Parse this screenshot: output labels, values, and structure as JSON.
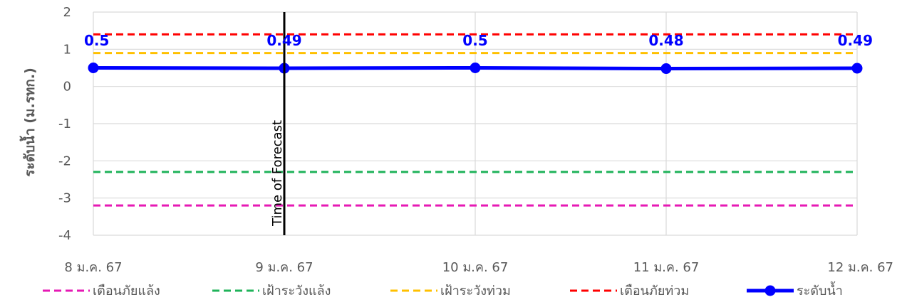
{
  "chart_data": {
    "type": "line",
    "ylabel": "ระดับน้ำ (ม.รทก.)",
    "ylim": [
      -4,
      2
    ],
    "yticks": [
      -4,
      -3,
      -2,
      -1,
      0,
      1,
      2
    ],
    "categories": [
      "8 ม.ค. 67",
      "9 ม.ค. 67",
      "10 ม.ค. 67",
      "11 ม.ค. 67",
      "12 ม.ค. 67"
    ],
    "grid": true,
    "legend_position": "bottom",
    "series": [
      {
        "name": "เตือนภัยแล้ง",
        "values": [
          -3.2,
          -3.2,
          -3.2,
          -3.2,
          -3.2
        ],
        "color": "#e619b4",
        "style": "dashed"
      },
      {
        "name": "เฝ้าระวังแล้ง",
        "values": [
          -2.3,
          -2.3,
          -2.3,
          -2.3,
          -2.3
        ],
        "color": "#1fb35a",
        "style": "dashed"
      },
      {
        "name": "เฝ้าระวังท่วม",
        "values": [
          0.9,
          0.9,
          0.9,
          0.9,
          0.9
        ],
        "color": "#ffc000",
        "style": "dashed"
      },
      {
        "name": "เตือนภัยท่วม",
        "values": [
          1.4,
          1.4,
          1.4,
          1.4,
          1.4
        ],
        "color": "#ff0000",
        "style": "dashed"
      },
      {
        "name": "ระดับน้ำ",
        "values": [
          0.5,
          0.49,
          0.5,
          0.48,
          0.49
        ],
        "color": "#0000ff",
        "style": "solid-marker",
        "data_labels": [
          "0.5",
          "0.49",
          "0.5",
          "0.48",
          "0.49"
        ]
      }
    ],
    "annotations": [
      {
        "text": "Time of Forecast",
        "x_category": "9 ม.ค. 67"
      }
    ]
  }
}
